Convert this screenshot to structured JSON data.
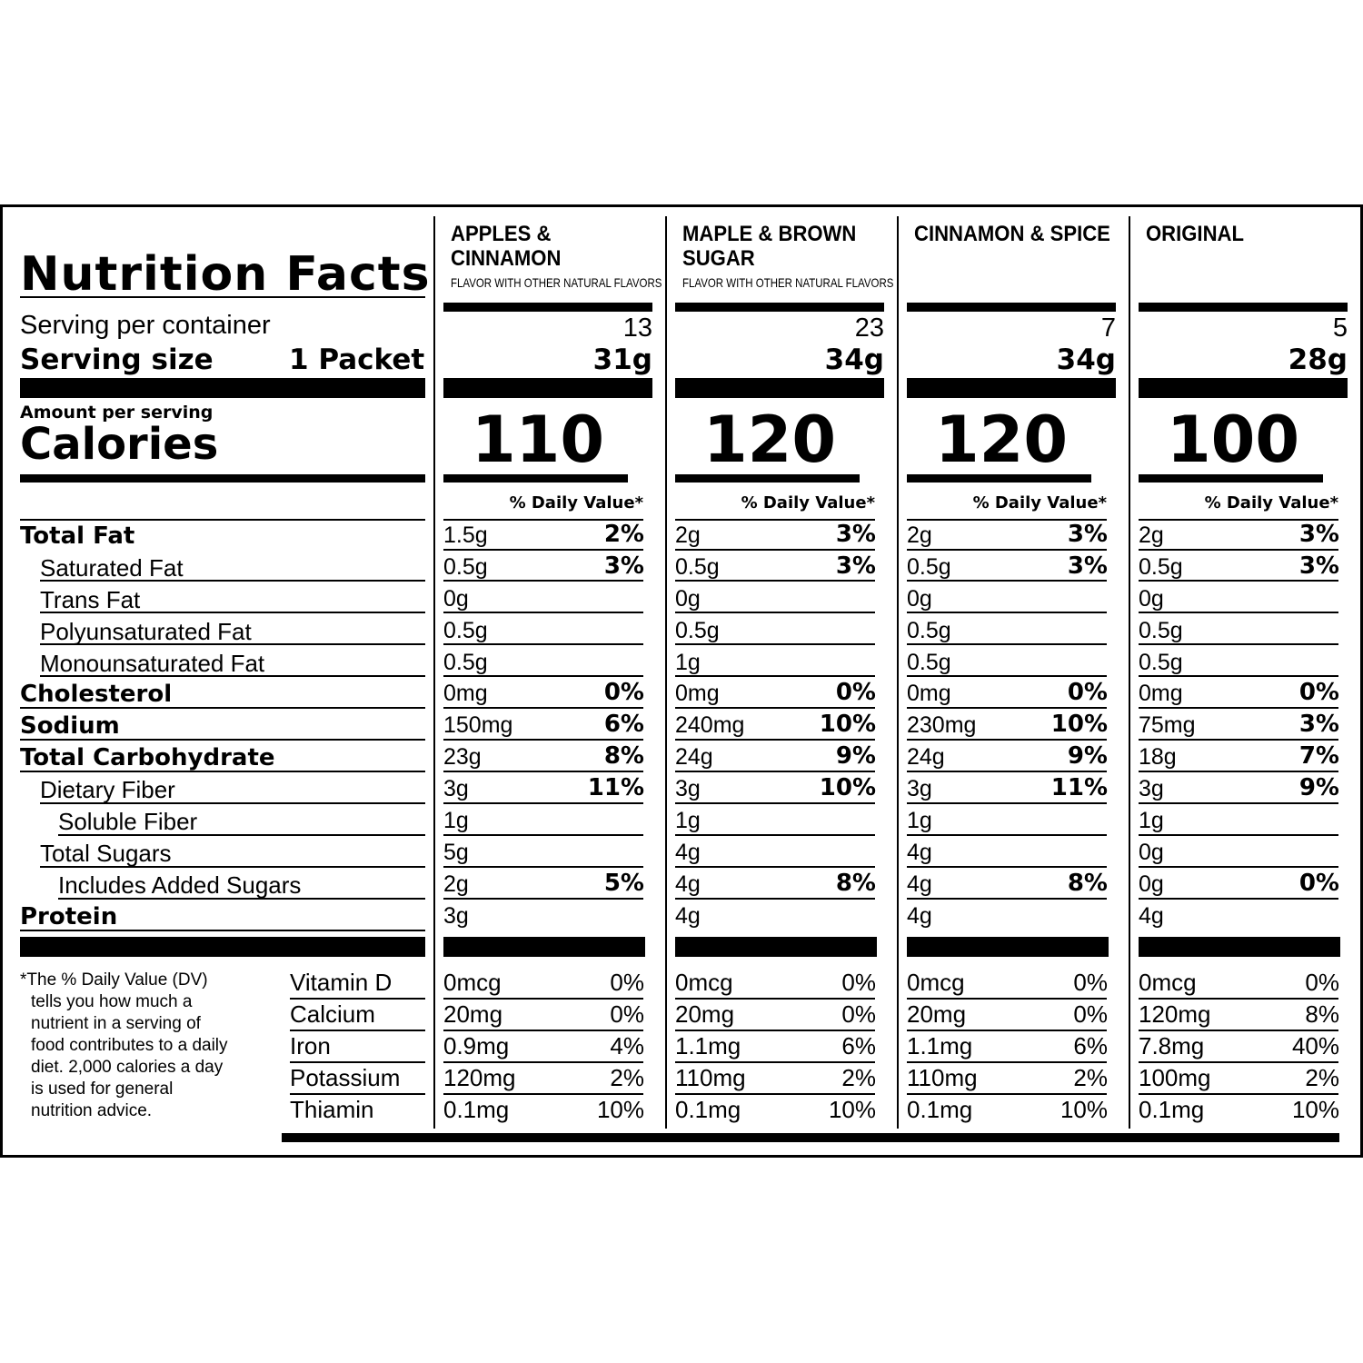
{
  "title": "Nutrition Facts",
  "serving_per_container_label": "Serving per container",
  "serving_size_label": "Serving size",
  "serving_size_value": "1 Packet",
  "amount_per_serving": "Amount per serving",
  "calories_label": "Calories",
  "dv_header": "% Daily Value*",
  "nutrient_labels": [
    "Total Fat",
    "Saturated Fat",
    "Trans Fat",
    "Polyunsaturated Fat",
    "Monounsaturated Fat",
    "Cholesterol",
    "Sodium",
    "Total Carbohydrate",
    "Dietary Fiber",
    "Soluble Fiber",
    "Total Sugars",
    "Includes Added Sugars",
    "Protein"
  ],
  "vitamin_labels": [
    "Vitamin D",
    "Calcium",
    "Iron",
    "Potassium",
    "Thiamin"
  ],
  "footnote": [
    "*The % Daily Value (DV)",
    "tells you how much a",
    "nutrient in a serving of",
    "food contributes to a daily",
    "diet. 2,000 calories a day",
    "is used for general",
    "nutrition advice."
  ],
  "flavors": [
    {
      "name_lines": [
        "APPLES &",
        "CINNAMON"
      ],
      "subtitle": "FLAVOR WITH OTHER NATURAL FLAVORS",
      "servings": "13",
      "serving_size": "31g",
      "calories": "110",
      "nutrients": [
        [
          "1.5g",
          "2%"
        ],
        [
          "0.5g",
          "3%"
        ],
        [
          "0g",
          ""
        ],
        [
          "0.5g",
          ""
        ],
        [
          "0.5g",
          ""
        ],
        [
          "0mg",
          "0%"
        ],
        [
          "150mg",
          "6%"
        ],
        [
          "23g",
          "8%"
        ],
        [
          "3g",
          "11%"
        ],
        [
          "1g",
          ""
        ],
        [
          "5g",
          ""
        ],
        [
          "2g",
          "5%"
        ],
        [
          "3g",
          ""
        ]
      ],
      "vitamins": [
        [
          "0mcg",
          "0%"
        ],
        [
          "20mg",
          "0%"
        ],
        [
          "0.9mg",
          "4%"
        ],
        [
          "120mg",
          "2%"
        ],
        [
          "0.1mg",
          "10%"
        ]
      ]
    },
    {
      "name_lines": [
        "MAPLE & BROWN",
        "SUGAR"
      ],
      "subtitle": "FLAVOR WITH OTHER NATURAL FLAVORS",
      "servings": "23",
      "serving_size": "34g",
      "calories": "120",
      "nutrients": [
        [
          "2g",
          "3%"
        ],
        [
          "0.5g",
          "3%"
        ],
        [
          "0g",
          ""
        ],
        [
          "0.5g",
          ""
        ],
        [
          "1g",
          ""
        ],
        [
          "0mg",
          "0%"
        ],
        [
          "240mg",
          "10%"
        ],
        [
          "24g",
          "9%"
        ],
        [
          "3g",
          "10%"
        ],
        [
          "1g",
          ""
        ],
        [
          "4g",
          ""
        ],
        [
          "4g",
          "8%"
        ],
        [
          "4g",
          ""
        ]
      ],
      "vitamins": [
        [
          "0mcg",
          "0%"
        ],
        [
          "20mg",
          "0%"
        ],
        [
          "1.1mg",
          "6%"
        ],
        [
          "110mg",
          "2%"
        ],
        [
          "0.1mg",
          "10%"
        ]
      ]
    },
    {
      "name_lines": [
        "CINNAMON & SPICE"
      ],
      "subtitle": "",
      "servings": "7",
      "serving_size": "34g",
      "calories": "120",
      "nutrients": [
        [
          "2g",
          "3%"
        ],
        [
          "0.5g",
          "3%"
        ],
        [
          "0g",
          ""
        ],
        [
          "0.5g",
          ""
        ],
        [
          "0.5g",
          ""
        ],
        [
          "0mg",
          "0%"
        ],
        [
          "230mg",
          "10%"
        ],
        [
          "24g",
          "9%"
        ],
        [
          "3g",
          "11%"
        ],
        [
          "1g",
          ""
        ],
        [
          "4g",
          ""
        ],
        [
          "4g",
          "8%"
        ],
        [
          "4g",
          ""
        ]
      ],
      "vitamins": [
        [
          "0mcg",
          "0%"
        ],
        [
          "20mg",
          "0%"
        ],
        [
          "1.1mg",
          "6%"
        ],
        [
          "110mg",
          "2%"
        ],
        [
          "0.1mg",
          "10%"
        ]
      ]
    },
    {
      "name_lines": [
        "ORIGINAL"
      ],
      "subtitle": "",
      "servings": "5",
      "serving_size": "28g",
      "calories": "100",
      "nutrients": [
        [
          "2g",
          "3%"
        ],
        [
          "0.5g",
          "3%"
        ],
        [
          "0g",
          ""
        ],
        [
          "0.5g",
          ""
        ],
        [
          "0.5g",
          ""
        ],
        [
          "0mg",
          "0%"
        ],
        [
          "75mg",
          "3%"
        ],
        [
          "18g",
          "7%"
        ],
        [
          "3g",
          "9%"
        ],
        [
          "1g",
          ""
        ],
        [
          "0g",
          ""
        ],
        [
          "0g",
          "0%"
        ],
        [
          "4g",
          ""
        ]
      ],
      "vitamins": [
        [
          "0mcg",
          "0%"
        ],
        [
          "120mg",
          "8%"
        ],
        [
          "7.8mg",
          "40%"
        ],
        [
          "100mg",
          "2%"
        ],
        [
          "0.1mg",
          "10%"
        ]
      ]
    }
  ]
}
